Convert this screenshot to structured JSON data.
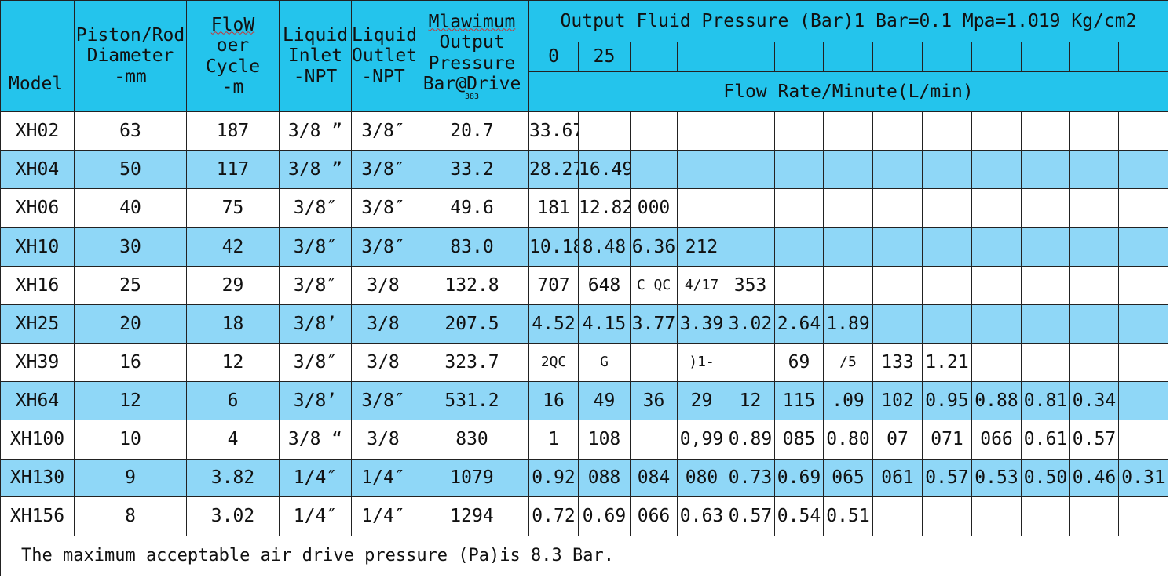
{
  "colors": {
    "header_bg": "#24c4ec",
    "stripe_bg": "#8fd7f7",
    "plain_bg": "#ffffff",
    "grid_line": "#222222"
  },
  "header": {
    "model": "Model",
    "piston": [
      "Piston/Rod",
      "Diameter",
      "-mm"
    ],
    "flow": [
      "FloW",
      "oer Cycle",
      "-m"
    ],
    "inlet": [
      "Liquid",
      "Inlet",
      "-NPT"
    ],
    "outlet": [
      "Liquid",
      "Outlet",
      "-NPT"
    ],
    "maxp": [
      "Mlawimum",
      "Output",
      "Pressure",
      "Bar@Drive",
      "383"
    ],
    "output_title": "Output Fluid Pressure  (Bar)1 Bar=0.1 Mpa=1.019 Kg/cm2",
    "pressure_levels": [
      "0",
      "25",
      "",
      "",
      "",
      "",
      "",
      "",
      "",
      "",
      "",
      "",
      ""
    ],
    "flow_rate_title": "Flow  Rate/Minute(L/min)"
  },
  "rows": [
    {
      "model": "XH02",
      "piston": "63",
      "flow": "187",
      "inlet": "3/8 ”",
      "outlet": "3/8″",
      "maxp": "20.7",
      "rates": [
        "33.67",
        "",
        "",
        "",
        "",
        "",
        "",
        "",
        "",
        "",
        "",
        "",
        ""
      ]
    },
    {
      "model": "XH04",
      "piston": "50",
      "flow": "117",
      "inlet": "3/8 ”",
      "outlet": "3/8″",
      "maxp": "33.2",
      "rates": [
        "28.27",
        "16.49",
        "",
        "",
        "",
        "",
        "",
        "",
        "",
        "",
        "",
        "",
        ""
      ]
    },
    {
      "model": "XH06",
      "piston": "40",
      "flow": "75",
      "inlet": "3/8″",
      "outlet": "3/8″",
      "maxp": "49.6",
      "rates": [
        "181",
        "12.82",
        "000",
        "",
        "",
        "",
        "",
        "",
        "",
        "",
        "",
        "",
        ""
      ]
    },
    {
      "model": "XH10",
      "piston": "30",
      "flow": "42",
      "inlet": "3/8″",
      "outlet": "3/8″",
      "maxp": "83.0",
      "rates": [
        "10.18",
        "8.48",
        "6.36",
        "212",
        "",
        "",
        "",
        "",
        "",
        "",
        "",
        "",
        ""
      ]
    },
    {
      "model": "XH16",
      "piston": "25",
      "flow": "29",
      "inlet": "3/8″",
      "outlet": "3/8",
      "maxp": "132.8",
      "rates": [
        "707",
        "648",
        "C QC",
        "4/17",
        "353",
        "",
        "",
        "",
        "",
        "",
        "",
        "",
        ""
      ]
    },
    {
      "model": "XH25",
      "piston": "20",
      "flow": "18",
      "inlet": "3/8’",
      "outlet": "3/8",
      "maxp": "207.5",
      "rates": [
        "4.52",
        "4.15",
        "3.77",
        "3.39",
        "3.02",
        "2.64",
        "1.89",
        "",
        "",
        "",
        "",
        "",
        ""
      ]
    },
    {
      "model": "XH39",
      "piston": "16",
      "flow": "12",
      "inlet": "3/8″",
      "outlet": "3/8",
      "maxp": "323.7",
      "rates": [
        "2QC",
        "G",
        "",
        ")1-",
        "",
        "69",
        "/5",
        "133",
        "1.21",
        "",
        "",
        "",
        ""
      ]
    },
    {
      "model": "XH64",
      "piston": "12",
      "flow": "6",
      "inlet": "3/8’",
      "outlet": "3/8″",
      "maxp": "531.2",
      "rates": [
        "16",
        "49",
        "36",
        "29",
        "12",
        "115",
        ".09",
        "102",
        "0.95",
        "0.88",
        "0.81",
        "0.34",
        ""
      ]
    },
    {
      "model": "XH100",
      "piston": "10",
      "flow": "4",
      "inlet": "3/8 “",
      "outlet": "3/8",
      "maxp": "830",
      "rates": [
        "1",
        "108",
        "",
        "0,99",
        "0.89",
        "085",
        "0.80",
        "07",
        "071",
        "066",
        "0.61",
        "0.57",
        ""
      ]
    },
    {
      "model": "XH130",
      "piston": "9",
      "flow": "3.82",
      "inlet": "1/4″",
      "outlet": "1/4″",
      "maxp": "1079",
      "rates": [
        "0.92",
        "088",
        "084",
        "080",
        "0.73",
        "0.69",
        "065",
        "061",
        "0.57",
        "0.53",
        "0.50",
        "0.46",
        "0.31"
      ]
    },
    {
      "model": "XH156",
      "piston": "8",
      "flow": "3.02",
      "inlet": "1/4″",
      "outlet": "1/4″",
      "maxp": "1294",
      "rates": [
        "0.72",
        "0.69",
        "066",
        "0.63",
        "0.57",
        "0.54",
        "0.51",
        "",
        "",
        "",
        "",
        "",
        ""
      ]
    }
  ],
  "footnote": "The maximum acceptable air drive pressure  (Pa)is 8.3 Bar."
}
